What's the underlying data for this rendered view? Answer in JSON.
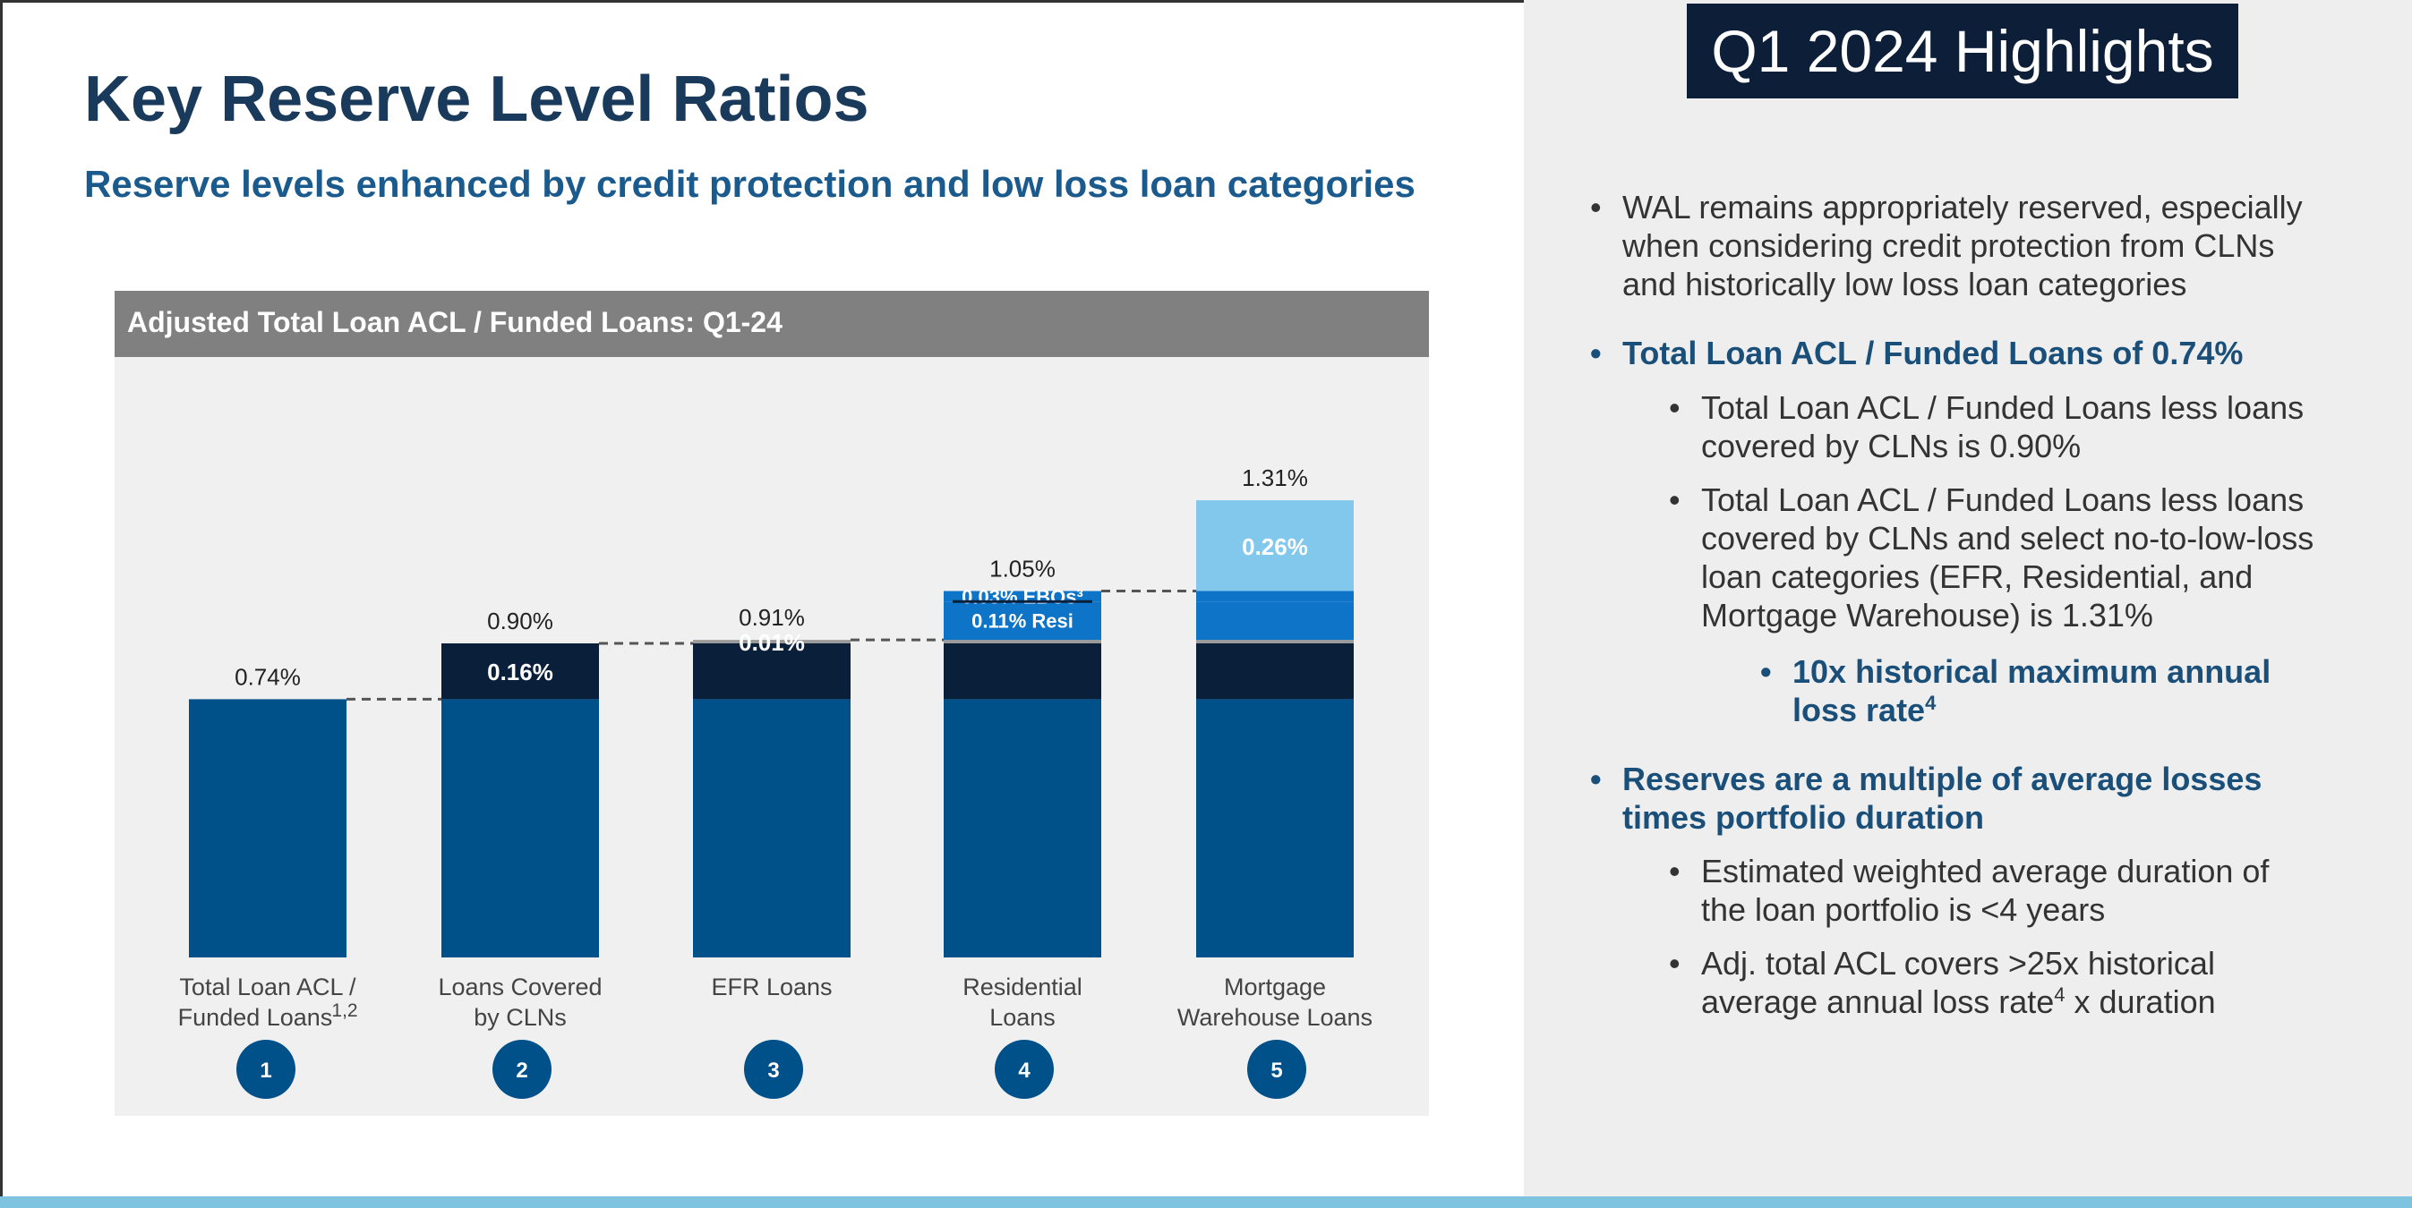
{
  "slide": {
    "title": "Key Reserve Level Ratios",
    "subtitle": "Reserve levels enhanced by credit protection and low loss loan categories"
  },
  "chart_panel": {
    "title": "Adjusted Total Loan ACL / Funded Loans: Q1-24"
  },
  "chart_data": {
    "type": "bar",
    "subtype": "stacked waterfall",
    "title": "Adjusted Total Loan ACL / Funded Loans: Q1-24",
    "categories": [
      "Total Loan ACL / Funded Loans 1,2",
      "Loans Covered by CLNs",
      "EFR Loans",
      "Residential Loans",
      "Mortgage Warehouse Loans"
    ],
    "category_numbers": [
      "1",
      "2",
      "3",
      "4",
      "5"
    ],
    "totals": [
      0.74,
      0.9,
      0.91,
      1.05,
      1.31
    ],
    "total_labels": [
      "0.74%",
      "0.90%",
      "0.91%",
      "1.05%",
      "1.31%"
    ],
    "series": [
      {
        "key": "base",
        "values": [
          0.74,
          0.74,
          0.74,
          0.74,
          0.74
        ],
        "color": "#00508a"
      },
      {
        "key": "clns",
        "values": [
          0,
          0.16,
          0.16,
          0.16,
          0.16
        ],
        "color": "#0a1f3a",
        "labels": [
          null,
          "0.16%",
          null,
          null,
          null
        ]
      },
      {
        "key": "efr",
        "values": [
          0,
          0,
          0.01,
          0.01,
          0.01
        ],
        "color": "#9a9a9a",
        "labels": [
          null,
          null,
          "0.01%",
          null,
          null
        ]
      },
      {
        "key": "resi",
        "values": [
          0,
          0,
          0,
          0.11,
          0.11
        ],
        "color": "#0d74c8",
        "labels": [
          null,
          null,
          null,
          "0.11% Resi",
          null
        ]
      },
      {
        "key": "ebos",
        "values": [
          0,
          0,
          0,
          0.03,
          0.03
        ],
        "color": "#0d74c8",
        "labels": [
          null,
          null,
          null,
          "0.03% EBOs³",
          null
        ]
      },
      {
        "key": "mw",
        "values": [
          0,
          0,
          0,
          0,
          0.26
        ],
        "color": "#82c7ec",
        "labels": [
          null,
          null,
          null,
          null,
          "0.26%"
        ]
      }
    ],
    "ylim": [
      0,
      1.6
    ],
    "grid": false,
    "legend": "none",
    "connectors": "dashed"
  },
  "highlights": {
    "title": "Q1 2024 Highlights",
    "bullets": [
      {
        "text": "WAL remains appropriately reserved, especially when considering credit protection from CLNs and historically low loss loan categories"
      },
      {
        "text": "Total Loan ACL / Funded Loans of 0.74%"
      },
      {
        "text": "Total Loan ACL / Funded Loans less loans covered by CLNs is 0.90%"
      },
      {
        "text": "Total Loan ACL / Funded Loans less loans covered by CLNs and select no-to-low-loss loan categories (EFR, Residential, and Mortgage Warehouse) is 1.31%"
      },
      {
        "text": "10x historical maximum annual loss rate",
        "sup": "4"
      },
      {
        "text": "Reserves are a multiple of average losses times portfolio duration"
      },
      {
        "text": "Estimated weighted average duration of the loan portfolio is <4 years"
      },
      {
        "text": "Adj. total ACL covers >25x historical average annual loss rate",
        "sup": "4",
        "tail": " x duration"
      }
    ]
  },
  "colors": {
    "title": "#1a3a5c",
    "subtitle": "#1a5a8c",
    "highlight_header": "#0d1f38",
    "bottom_bar": "#7ec4e0",
    "circle": "#00508a"
  }
}
